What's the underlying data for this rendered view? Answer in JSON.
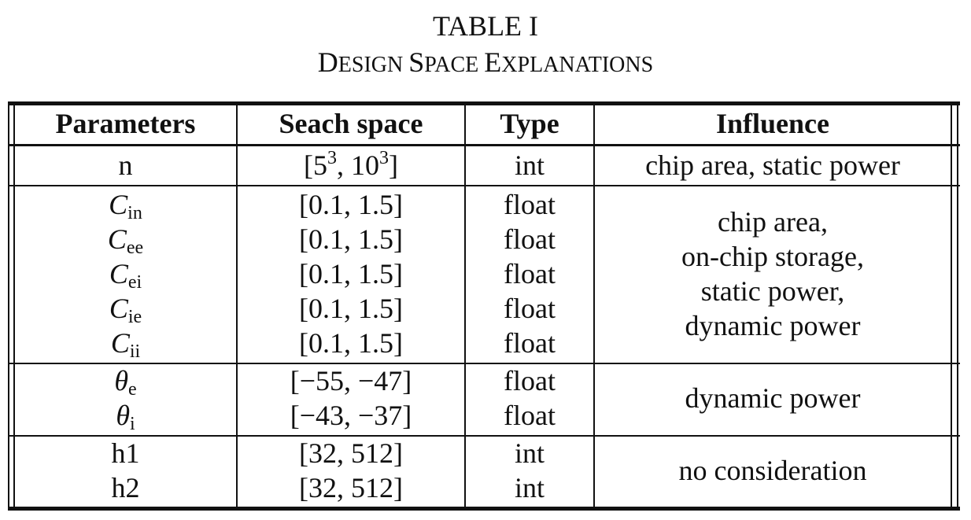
{
  "caption": {
    "label": "TABLE I",
    "title_parts": [
      "D",
      "ESIGN ",
      "S",
      "PACE ",
      "E",
      "XPLANATIONS"
    ]
  },
  "table": {
    "headers": [
      "Parameters",
      "Seach space",
      "Type",
      "Influence"
    ],
    "groups": [
      {
        "rows": [
          {
            "param_base": "n",
            "param_sub": "",
            "space": "[5³, 10³]",
            "space_lo_base": "5",
            "space_lo_exp": "3",
            "space_hi_base": "10",
            "space_hi_exp": "3",
            "type": "int"
          }
        ],
        "influence": [
          "chip area, static power"
        ]
      },
      {
        "rows": [
          {
            "param_base": "C",
            "param_sub": "in",
            "space": "[0.1, 1.5]",
            "type": "float"
          },
          {
            "param_base": "C",
            "param_sub": "ee",
            "space": "[0.1, 1.5]",
            "type": "float"
          },
          {
            "param_base": "C",
            "param_sub": "ei",
            "space": "[0.1, 1.5]",
            "type": "float"
          },
          {
            "param_base": "C",
            "param_sub": "ie",
            "space": "[0.1, 1.5]",
            "type": "float"
          },
          {
            "param_base": "C",
            "param_sub": "ii",
            "space": "[0.1, 1.5]",
            "type": "float"
          }
        ],
        "influence": [
          "chip area,",
          "on-chip storage,",
          "static power,",
          "dynamic power"
        ]
      },
      {
        "rows": [
          {
            "param_base": "θ",
            "param_sub": "e",
            "space": "[−55, −47]",
            "type": "float"
          },
          {
            "param_base": "θ",
            "param_sub": "i",
            "space": "[−43, −37]",
            "type": "float"
          }
        ],
        "influence": [
          "dynamic power"
        ]
      },
      {
        "rows": [
          {
            "param_base": "h1",
            "param_sub": "",
            "space": "[32, 512]",
            "type": "int"
          },
          {
            "param_base": "h2",
            "param_sub": "",
            "space": "[32, 512]",
            "type": "int"
          }
        ],
        "influence": [
          "no consideration"
        ]
      }
    ]
  }
}
